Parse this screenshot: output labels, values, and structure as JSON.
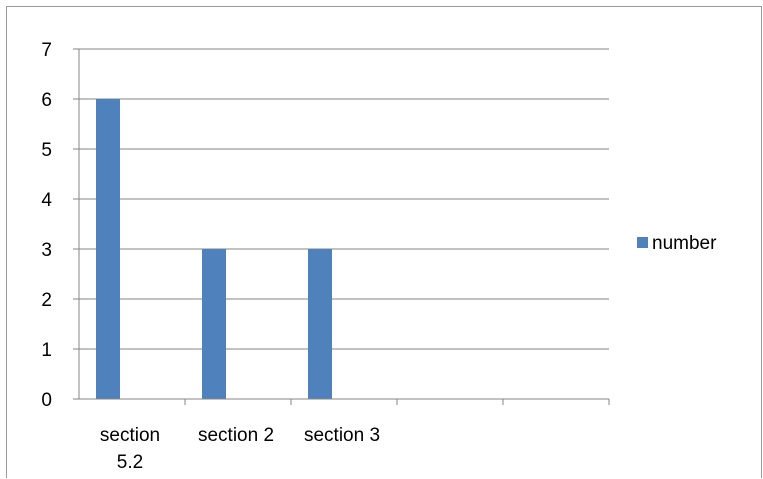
{
  "chart_data": {
    "type": "bar",
    "categories": [
      [
        "section",
        "5.2"
      ],
      [
        "section 2"
      ],
      [
        "section 3"
      ],
      [
        ""
      ],
      [
        ""
      ]
    ],
    "series": [
      {
        "name": "number",
        "values": [
          6,
          3,
          3,
          null,
          null
        ]
      }
    ],
    "ylim": [
      0,
      7
    ],
    "yticks": [
      "0",
      "1",
      "2",
      "3",
      "4",
      "5",
      "6",
      "7"
    ],
    "grid": true,
    "legend_position": "right",
    "colors": {
      "bar": "#4f81bd",
      "grid": "#868686",
      "axis": "#868686"
    }
  }
}
